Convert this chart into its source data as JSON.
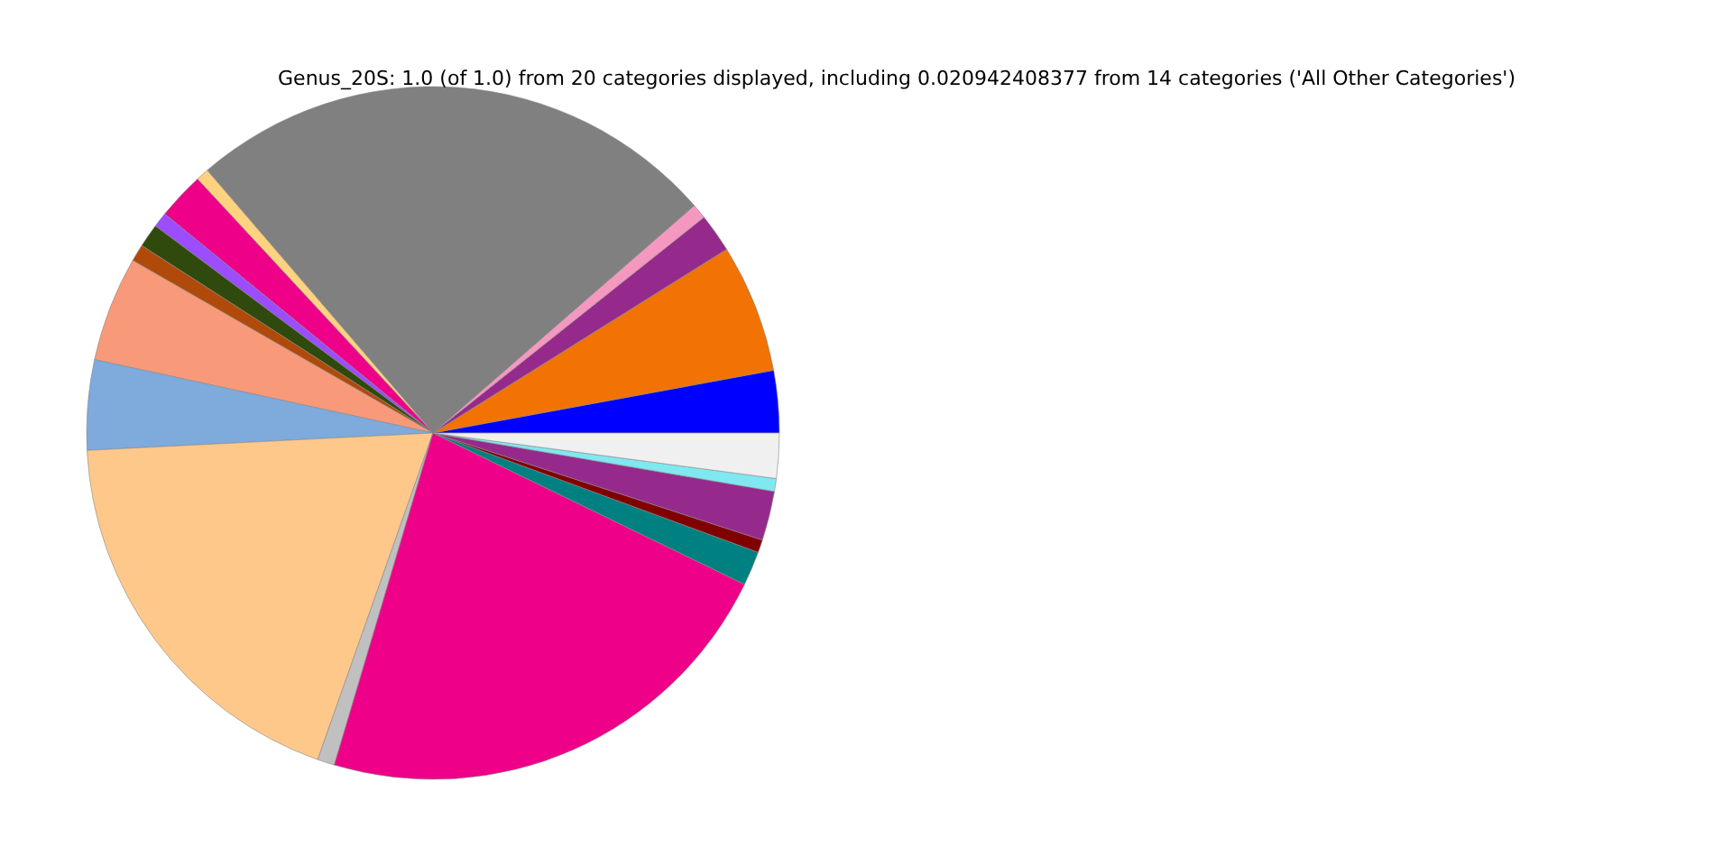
{
  "chart_data": {
    "type": "pie",
    "title": "Genus_20S: 1.0 (of 1.0) from 20 categories displayed, including 0.020942408377 from 14 categories ('All Other Categories')",
    "categories": [
      null,
      null,
      null,
      null,
      null,
      null,
      null,
      null,
      null,
      null,
      null,
      null,
      null,
      null,
      null,
      null,
      null,
      null,
      null,
      null
    ],
    "values": [
      2.9,
      6.0,
      1.8,
      0.7,
      24.9,
      0.6,
      2.2,
      0.7,
      1.1,
      0.8,
      4.9,
      4.2,
      18.8,
      0.8,
      22.4,
      1.6,
      0.6,
      2.3,
      0.6,
      2.1
    ],
    "colors": [
      "#0000ff",
      "#f27304",
      "#952a8c",
      "#f598c0",
      "#808080",
      "#ffd27f",
      "#ee0088",
      "#9b4dff",
      "#2f4a0c",
      "#b04a0a",
      "#f89a7a",
      "#7eaadc",
      "#fdc88a",
      "#c0c0c0",
      "#ee0088",
      "#008080",
      "#800000",
      "#952a8c",
      "#80e8f0",
      "#f0f0f0"
    ]
  }
}
